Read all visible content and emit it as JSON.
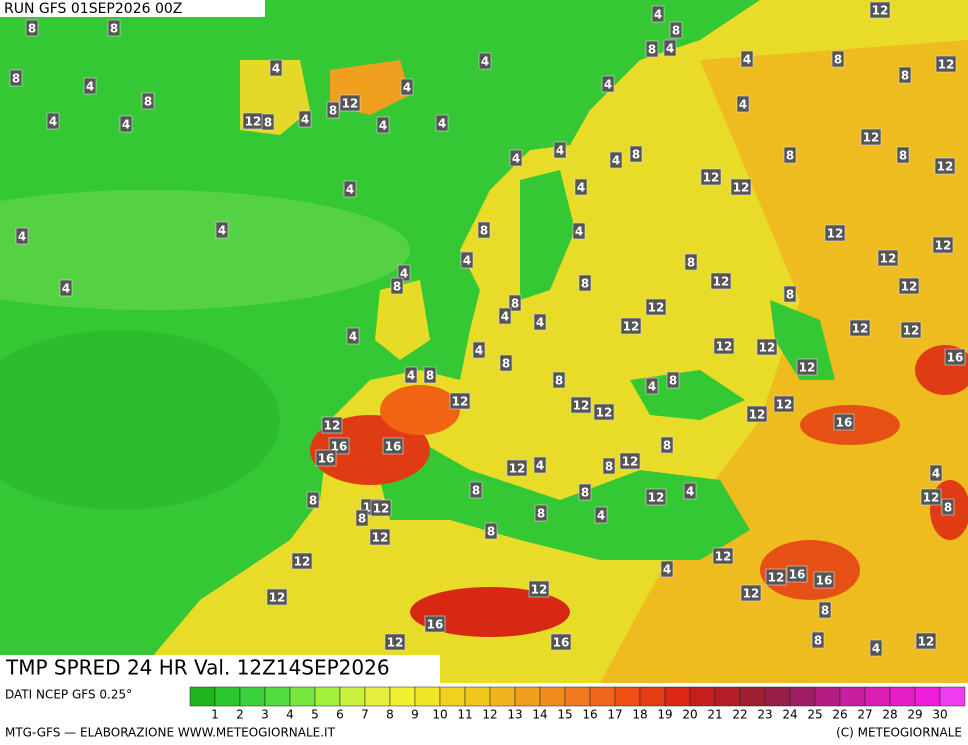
{
  "header": {
    "run": "RUN GFS 01SEP2026 00Z",
    "title": "TMP SPRED 24 HR Val. 12Z14SEP2026"
  },
  "map_labels": [
    8,
    8,
    8,
    4,
    8,
    4,
    4,
    4,
    12,
    8,
    4,
    8,
    12,
    4,
    4,
    4,
    4,
    4,
    8,
    8,
    4,
    4,
    8,
    12,
    8,
    12,
    4,
    4,
    4,
    4,
    4,
    4,
    4,
    4,
    4,
    8,
    12,
    12,
    8,
    12,
    8,
    12,
    4,
    8,
    4,
    4,
    4,
    8,
    12,
    12,
    12,
    8,
    12,
    8,
    12,
    8,
    8,
    4,
    4,
    12,
    12,
    12,
    12,
    4,
    4,
    8,
    12,
    12,
    16,
    12,
    4,
    8,
    8,
    4,
    8,
    12,
    12,
    12,
    12,
    12,
    16,
    12,
    16,
    16,
    16,
    8,
    12,
    8,
    4,
    12,
    8,
    8,
    12,
    4,
    4,
    12,
    8,
    8,
    16,
    12,
    8,
    12,
    8,
    4,
    8,
    12,
    12,
    4,
    12,
    16,
    16,
    12,
    12,
    12,
    8,
    16,
    16,
    12,
    8,
    4,
    12
  ],
  "scale": {
    "source": "DATI NCEP GFS 0.25°",
    "labels": [
      1,
      2,
      3,
      4,
      5,
      6,
      7,
      8,
      9,
      10,
      11,
      12,
      13,
      14,
      15,
      16,
      17,
      18,
      19,
      20,
      21,
      22,
      23,
      24,
      25,
      26,
      27,
      28,
      29,
      30
    ],
    "colors": [
      "#1eb41e",
      "#2dc82d",
      "#3cd23c",
      "#50dc3c",
      "#78e63c",
      "#a0f03c",
      "#c8f03c",
      "#e6f03c",
      "#f0f032",
      "#f0e628",
      "#f0d21e",
      "#f0c81e",
      "#f0b41e",
      "#f0a01e",
      "#f08c1e",
      "#f0781e",
      "#f0641e",
      "#f05014",
      "#e63c14",
      "#dc2814",
      "#c81e1e",
      "#b41e28",
      "#a01e32",
      "#961e46",
      "#a01e64",
      "#b41e82",
      "#c81ea0",
      "#dc1eb4",
      "#e61ec8",
      "#f01edc",
      "#f03cf0"
    ]
  },
  "footer": {
    "left": "MTG-GFS — ELABORAZIONE WWW.METEOGIORNALE.IT",
    "right": "(C) METEOGIORNALE"
  }
}
